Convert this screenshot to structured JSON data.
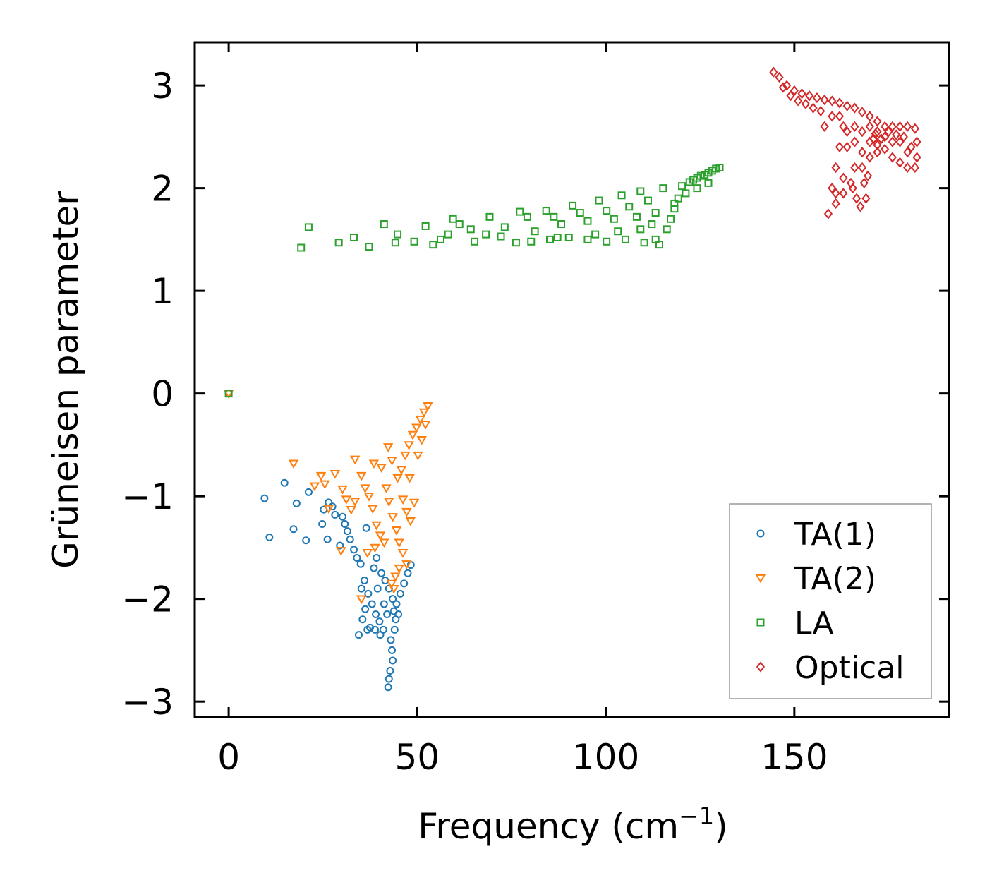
{
  "chart_data": {
    "type": "scatter",
    "title": "",
    "xlabel": "Frequency (cm",
    "xlabel_sup": "−1",
    "xlabel_suffix": ")",
    "ylabel": "Grüneisen parameter",
    "xlim": [
      -9,
      191
    ],
    "ylim": [
      -3.15,
      3.42
    ],
    "xticks": [
      0,
      50,
      100,
      150
    ],
    "xtick_labels": [
      "0",
      "50",
      "100",
      "150"
    ],
    "yticks": [
      3,
      2,
      1,
      0,
      -1,
      -2,
      -3
    ],
    "ytick_labels": [
      "3",
      "2",
      "1",
      "0",
      "−1",
      "−2",
      "−3"
    ],
    "grid": false,
    "legend_position": "lower-right",
    "series": [
      {
        "name": "TA(1)",
        "color": "#1f77b4",
        "marker": "circle",
        "points": [
          [
            0,
            0
          ],
          [
            9.5,
            -1.02
          ],
          [
            10.8,
            -1.4
          ],
          [
            14.8,
            -0.87
          ],
          [
            17.2,
            -1.32
          ],
          [
            18,
            -1.07
          ],
          [
            20.5,
            -1.43
          ],
          [
            21.2,
            -0.96
          ],
          [
            24.8,
            -1.27
          ],
          [
            25.2,
            -1.13
          ],
          [
            26.2,
            -1.42
          ],
          [
            26.5,
            -1.06
          ],
          [
            27.5,
            -1.1
          ],
          [
            28.2,
            -1.18
          ],
          [
            29.5,
            -1.48
          ],
          [
            30.2,
            -1.2
          ],
          [
            30.8,
            -1.27
          ],
          [
            31.5,
            -1.34
          ],
          [
            32.2,
            -1.42
          ],
          [
            33.2,
            -1.52
          ],
          [
            34,
            -1.6
          ],
          [
            35,
            -1.66
          ],
          [
            36.5,
            -1.31
          ],
          [
            36,
            -1.82
          ],
          [
            37,
            -1.95
          ],
          [
            38,
            -2.05
          ],
          [
            39,
            -2.15
          ],
          [
            40,
            -2.22
          ],
          [
            41,
            -2.3
          ],
          [
            34.5,
            -2.35
          ],
          [
            35.5,
            -2.2
          ],
          [
            36.2,
            -2.1
          ],
          [
            37.5,
            -2.28
          ],
          [
            39.5,
            -1.9
          ],
          [
            40.5,
            -1.75
          ],
          [
            41.5,
            -1.82
          ],
          [
            42.5,
            -1.9
          ],
          [
            43.5,
            -2.0
          ],
          [
            44.5,
            -2.05
          ],
          [
            45.5,
            -1.95
          ],
          [
            46.5,
            -1.85
          ],
          [
            47.5,
            -1.75
          ],
          [
            48.3,
            -1.67
          ],
          [
            43,
            -2.4
          ],
          [
            43.3,
            -2.5
          ],
          [
            43.5,
            -2.6
          ],
          [
            42.8,
            -2.7
          ],
          [
            42.5,
            -2.78
          ],
          [
            42.3,
            -2.86
          ],
          [
            44,
            -2.3
          ],
          [
            44.3,
            -2.2
          ],
          [
            43.8,
            -2.12
          ],
          [
            38.5,
            -1.7
          ],
          [
            39.2,
            -1.6
          ],
          [
            41.2,
            -2.05
          ],
          [
            42,
            -2.15
          ],
          [
            35.2,
            -1.9
          ],
          [
            36.8,
            -2.3
          ],
          [
            38.8,
            -2.3
          ],
          [
            40.2,
            -2.35
          ],
          [
            45,
            -2.15
          ]
        ]
      },
      {
        "name": "TA(2)",
        "color": "#ff7f0e",
        "marker": "triangle-down",
        "points": [
          [
            0,
            0
          ],
          [
            17.2,
            -0.68
          ],
          [
            22.8,
            -0.9
          ],
          [
            24.5,
            -0.8
          ],
          [
            25.5,
            -0.88
          ],
          [
            26.5,
            -1.12
          ],
          [
            28.2,
            -0.78
          ],
          [
            30.2,
            -0.93
          ],
          [
            31.2,
            -1.03
          ],
          [
            32.5,
            -1.13
          ],
          [
            33.5,
            -1.05
          ],
          [
            33.5,
            -0.64
          ],
          [
            35.2,
            -0.8
          ],
          [
            36.2,
            -0.92
          ],
          [
            37.2,
            -1.0
          ],
          [
            38.2,
            -1.12
          ],
          [
            39.2,
            -1.28
          ],
          [
            40.2,
            -1.38
          ],
          [
            38.5,
            -0.68
          ],
          [
            40.5,
            -0.72
          ],
          [
            42.3,
            -0.52
          ],
          [
            43.3,
            -0.65
          ],
          [
            41.8,
            -0.92
          ],
          [
            42.5,
            -1.05
          ],
          [
            43.5,
            -1.2
          ],
          [
            44.5,
            -1.33
          ],
          [
            45.2,
            -1.45
          ],
          [
            46.2,
            -1.55
          ],
          [
            47.2,
            -1.66
          ],
          [
            44.8,
            -0.82
          ],
          [
            45.8,
            -0.74
          ],
          [
            46.8,
            -0.6
          ],
          [
            47.8,
            -0.5
          ],
          [
            48.8,
            -0.4
          ],
          [
            49.8,
            -0.33
          ],
          [
            50.8,
            -0.25
          ],
          [
            51.8,
            -0.18
          ],
          [
            52.8,
            -0.12
          ],
          [
            46.2,
            -1.03
          ],
          [
            47.2,
            -1.15
          ],
          [
            48.2,
            -1.24
          ],
          [
            49.2,
            -1.06
          ],
          [
            48,
            -0.82
          ],
          [
            50.2,
            -0.6
          ],
          [
            51.2,
            -0.45
          ],
          [
            52.2,
            -0.3
          ],
          [
            45.2,
            -1.7
          ],
          [
            44.2,
            -1.78
          ],
          [
            43.2,
            -1.85
          ],
          [
            35.2,
            -2.0
          ],
          [
            36.8,
            -1.55
          ],
          [
            38.8,
            -1.5
          ],
          [
            41.2,
            -1.45
          ],
          [
            43.8,
            -1.9
          ],
          [
            29.8,
            -1.53
          ]
        ]
      },
      {
        "name": "LA",
        "color": "#2ca02c",
        "marker": "square",
        "points": [
          [
            0,
            0
          ],
          [
            19.2,
            1.42
          ],
          [
            21.2,
            1.62
          ],
          [
            29.2,
            1.47
          ],
          [
            33.2,
            1.52
          ],
          [
            37.2,
            1.43
          ],
          [
            41.2,
            1.65
          ],
          [
            44.2,
            1.47
          ],
          [
            44.8,
            1.55
          ],
          [
            49.2,
            1.48
          ],
          [
            52.2,
            1.63
          ],
          [
            54.2,
            1.45
          ],
          [
            56.2,
            1.5
          ],
          [
            58.2,
            1.55
          ],
          [
            59.5,
            1.7
          ],
          [
            61.2,
            1.65
          ],
          [
            64.2,
            1.6
          ],
          [
            65.2,
            1.48
          ],
          [
            68.2,
            1.55
          ],
          [
            69.2,
            1.72
          ],
          [
            72.2,
            1.53
          ],
          [
            73.2,
            1.62
          ],
          [
            76.2,
            1.47
          ],
          [
            77.2,
            1.77
          ],
          [
            79.2,
            1.72
          ],
          [
            81.2,
            1.58
          ],
          [
            84.2,
            1.78
          ],
          [
            86.2,
            1.72
          ],
          [
            88.2,
            1.65
          ],
          [
            91.2,
            1.83
          ],
          [
            93.2,
            1.76
          ],
          [
            95.2,
            1.68
          ],
          [
            98.2,
            1.88
          ],
          [
            100.2,
            1.78
          ],
          [
            102.2,
            1.7
          ],
          [
            104.2,
            1.93
          ],
          [
            106.2,
            1.82
          ],
          [
            108.2,
            1.72
          ],
          [
            109.2,
            1.97
          ],
          [
            111.2,
            1.88
          ],
          [
            113.2,
            1.76
          ],
          [
            114.2,
            1.45
          ],
          [
            115.2,
            2.0
          ],
          [
            116.2,
            1.6
          ],
          [
            117.2,
            1.7
          ],
          [
            118.2,
            1.8
          ],
          [
            119.2,
            1.9
          ],
          [
            120.2,
            2.02
          ],
          [
            121.2,
            1.95
          ],
          [
            122.2,
            2.06
          ],
          [
            123.2,
            2.08
          ],
          [
            124.2,
            2.1
          ],
          [
            125.2,
            2.12
          ],
          [
            126.2,
            2.13
          ],
          [
            127.2,
            2.15
          ],
          [
            128.2,
            2.17
          ],
          [
            129.2,
            2.19
          ],
          [
            130.2,
            2.2
          ],
          [
            80.2,
            1.48
          ],
          [
            85.2,
            1.5
          ],
          [
            90.2,
            1.52
          ],
          [
            95.2,
            1.5
          ],
          [
            100.2,
            1.48
          ],
          [
            105.2,
            1.5
          ],
          [
            110.2,
            1.47
          ],
          [
            113.2,
            1.5
          ],
          [
            87.2,
            1.52
          ],
          [
            97.2,
            1.55
          ],
          [
            103.2,
            1.58
          ],
          [
            109.2,
            1.6
          ],
          [
            112.2,
            1.65
          ],
          [
            118.2,
            1.85
          ],
          [
            124.2,
            2.0
          ],
          [
            127.2,
            2.05
          ]
        ]
      },
      {
        "name": "Optical",
        "color": "#d62728",
        "marker": "diamond",
        "points": [
          [
            144.5,
            3.13
          ],
          [
            146,
            3.08
          ],
          [
            148,
            3.0
          ],
          [
            150,
            2.95
          ],
          [
            152,
            2.92
          ],
          [
            154,
            2.9
          ],
          [
            156,
            2.88
          ],
          [
            158,
            2.86
          ],
          [
            160,
            2.85
          ],
          [
            162,
            2.83
          ],
          [
            164,
            2.8
          ],
          [
            166,
            2.78
          ],
          [
            168,
            2.74
          ],
          [
            170,
            2.7
          ],
          [
            172,
            2.65
          ],
          [
            174,
            2.6
          ],
          [
            176,
            2.6
          ],
          [
            178,
            2.6
          ],
          [
            180,
            2.6
          ],
          [
            182,
            2.58
          ],
          [
            182.5,
            2.45
          ],
          [
            182.5,
            2.3
          ],
          [
            182,
            2.2
          ],
          [
            180,
            2.2
          ],
          [
            178,
            2.25
          ],
          [
            176,
            2.3
          ],
          [
            174,
            2.38
          ],
          [
            172,
            2.42
          ],
          [
            170,
            2.45
          ],
          [
            168,
            2.35
          ],
          [
            166,
            2.2
          ],
          [
            165,
            2.05
          ],
          [
            163,
            1.95
          ],
          [
            161,
            1.85
          ],
          [
            159,
            1.75
          ],
          [
            160,
            2.0
          ],
          [
            161,
            2.2
          ],
          [
            162,
            2.4
          ],
          [
            163,
            2.6
          ],
          [
            164,
            2.55
          ],
          [
            166,
            2.45
          ],
          [
            168,
            2.55
          ],
          [
            170,
            2.6
          ],
          [
            165.5,
            2.0
          ],
          [
            166.5,
            1.9
          ],
          [
            167.5,
            1.82
          ],
          [
            168.5,
            2.05
          ],
          [
            169.5,
            2.12
          ],
          [
            169,
            1.9
          ],
          [
            171,
            2.48
          ],
          [
            171.5,
            2.53
          ],
          [
            172,
            2.55
          ],
          [
            173,
            2.48
          ],
          [
            174,
            2.5
          ],
          [
            176,
            2.45
          ],
          [
            178,
            2.45
          ],
          [
            180,
            2.35
          ],
          [
            157,
            2.75
          ],
          [
            155,
            2.78
          ],
          [
            153,
            2.82
          ],
          [
            151,
            2.85
          ],
          [
            149,
            2.9
          ],
          [
            147,
            2.98
          ],
          [
            158,
            2.6
          ],
          [
            160,
            2.7
          ],
          [
            162,
            2.7
          ],
          [
            164,
            2.4
          ],
          [
            166,
            2.6
          ],
          [
            168,
            2.2
          ],
          [
            170,
            2.3
          ],
          [
            172,
            2.35
          ],
          [
            163,
            2.1
          ],
          [
            161,
            1.95
          ],
          [
            179,
            2.5
          ],
          [
            181,
            2.4
          ],
          [
            175,
            2.55
          ],
          [
            177,
            2.52
          ]
        ]
      }
    ]
  }
}
